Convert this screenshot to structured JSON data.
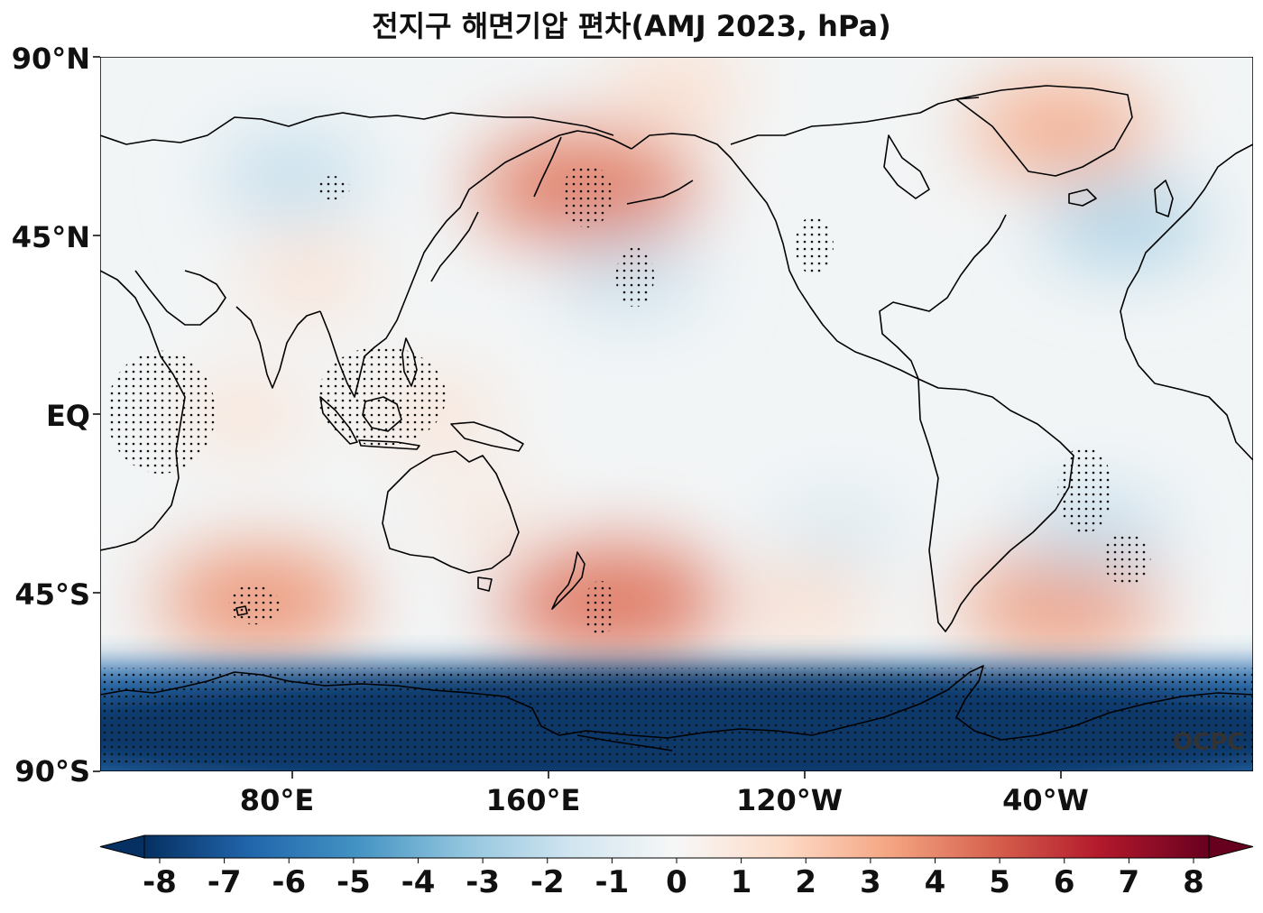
{
  "title": "전지구 해면기압 편차(AMJ 2023, hPa)",
  "watermark": "OCPC",
  "lat_labels": [
    "90°N",
    "45°N",
    "EQ",
    "45°S",
    "90°S"
  ],
  "lon_labels": [
    "80°E",
    "160°E",
    "120°W",
    "40°W"
  ],
  "colorbar": {
    "ticks": [
      "-8",
      "-7",
      "-6",
      "-5",
      "-4",
      "-3",
      "-2",
      "-1",
      "0",
      "1",
      "2",
      "3",
      "4",
      "5",
      "6",
      "7",
      "8"
    ],
    "min": -8,
    "max": 8,
    "colors": [
      "#053061",
      "#2166ac",
      "#4393c3",
      "#92c5de",
      "#d1e5f0",
      "#f7f7f7",
      "#fddbc7",
      "#f4a582",
      "#d6604d",
      "#b2182b",
      "#67001f"
    ]
  },
  "map": {
    "projection": "PlateCarree, central longitude 180",
    "lon_range": [
      20,
      380
    ],
    "lat_range": [
      -90,
      90
    ],
    "background_anomaly": -0.2,
    "anomalies": [
      {
        "region": "North Pacific / Aleutians",
        "lon": 172,
        "lat": 57,
        "value": 4.2
      },
      {
        "region": "Greenland",
        "lon": 320,
        "lat": 72,
        "value": 3.0
      },
      {
        "region": "Arctic",
        "lon": 200,
        "lat": 82,
        "value": 1.5
      },
      {
        "region": "Siberia",
        "lon": 80,
        "lat": 60,
        "value": -2.0
      },
      {
        "region": "North Atlantic",
        "lon": 340,
        "lat": 48,
        "value": -2.5
      },
      {
        "region": "Central North Pacific",
        "lon": 185,
        "lat": 35,
        "value": -1.8
      },
      {
        "region": "Tibet / Central Asia",
        "lon": 85,
        "lat": 35,
        "value": 1.3
      },
      {
        "region": "Indian Ocean",
        "lon": 65,
        "lat": 0,
        "value": 1.2
      },
      {
        "region": "Maritime Continent",
        "lon": 125,
        "lat": 0,
        "value": 1.2
      },
      {
        "region": "Australia",
        "lon": 140,
        "lat": -25,
        "value": 0.9
      },
      {
        "region": "Southern Indian Ocean",
        "lon": 70,
        "lat": -47,
        "value": 3.6
      },
      {
        "region": "New Zealand / Tasman",
        "lon": 180,
        "lat": -47,
        "value": 4.3
      },
      {
        "region": "South Atlantic",
        "lon": 320,
        "lat": -48,
        "value": 3.4
      },
      {
        "region": "Southeast Pacific",
        "lon": 240,
        "lat": -48,
        "value": 1.5
      },
      {
        "region": "Subtropical South Atlantic",
        "lon": 330,
        "lat": -30,
        "value": -2.0
      },
      {
        "region": "Southeast Pacific subtropics",
        "lon": 250,
        "lat": -30,
        "value": -1.3
      },
      {
        "region": "Antarctica / Southern Ocean",
        "lon": 200,
        "lat": -78,
        "value": -7.8
      }
    ],
    "significance_regions": [
      {
        "region": "Aleutians",
        "lon": [
          164,
          180
        ],
        "lat": [
          47,
          63
        ]
      },
      {
        "region": "Siberia",
        "lon": [
          87,
          98
        ],
        "lat": [
          54,
          60
        ]
      },
      {
        "region": "Central North Pacific",
        "lon": [
          181,
          193
        ],
        "lat": [
          27,
          42
        ]
      },
      {
        "region": "Western North America",
        "lon": [
          237,
          249
        ],
        "lat": [
          35,
          50
        ]
      },
      {
        "region": "Western Indian Ocean",
        "lon": [
          22,
          56
        ],
        "lat": [
          -15,
          16
        ]
      },
      {
        "region": "Maritime Continent",
        "lon": [
          88,
          128
        ],
        "lat": [
          -8,
          17
        ]
      },
      {
        "region": "Southern Indian Ocean",
        "lon": [
          60,
          76
        ],
        "lat": [
          -53,
          -43
        ]
      },
      {
        "region": "New Zealand",
        "lon": [
          171,
          181
        ],
        "lat": [
          -56,
          -42
        ]
      },
      {
        "region": "Eastern Brazil",
        "lon": [
          319,
          336
        ],
        "lat": [
          -30,
          -8
        ]
      },
      {
        "region": "South Atlantic",
        "lon": [
          333,
          348
        ],
        "lat": [
          -43,
          -30
        ]
      },
      {
        "region": "Antarctica",
        "lon": [
          20,
          380
        ],
        "lat": [
          -89,
          -64
        ]
      }
    ],
    "coastline_color": "#000000",
    "frame_color": "#000000"
  }
}
